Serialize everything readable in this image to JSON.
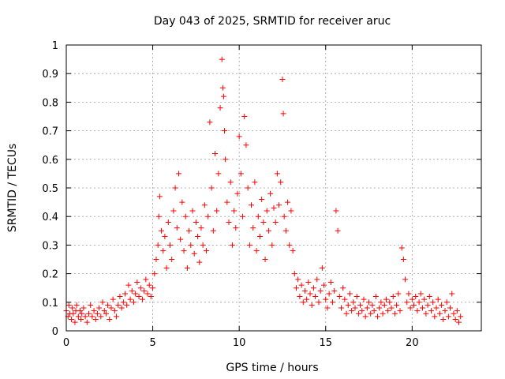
{
  "chart_data": {
    "type": "scatter",
    "title": "Day 043 of 2025, SRMTID for receiver aruc",
    "xlabel": "GPS time / hours",
    "ylabel": "SRMTID / TECUs",
    "xlim": [
      0,
      24
    ],
    "ylim": [
      0,
      1
    ],
    "x_ticks": [
      0,
      5,
      10,
      15,
      20
    ],
    "x_tick_labels": [
      "0",
      "5",
      "10",
      "15",
      "20"
    ],
    "y_ticks": [
      0,
      0.1,
      0.2,
      0.3,
      0.4,
      0.5,
      0.6,
      0.7,
      0.8,
      0.9,
      1
    ],
    "y_tick_labels": [
      "0",
      "0.1",
      "0.2",
      "0.3",
      "0.4",
      "0.5",
      "0.6",
      "0.7",
      "0.8",
      "0.9",
      "1"
    ],
    "grid": true,
    "marker": "+",
    "color": "#ff0000",
    "series": [
      {
        "name": "SRMTID",
        "points": [
          [
            0.0,
            0.07
          ],
          [
            0.1,
            0.05
          ],
          [
            0.15,
            0.09
          ],
          [
            0.2,
            0.06
          ],
          [
            0.3,
            0.04
          ],
          [
            0.35,
            0.08
          ],
          [
            0.4,
            0.06
          ],
          [
            0.5,
            0.03
          ],
          [
            0.55,
            0.07
          ],
          [
            0.6,
            0.09
          ],
          [
            0.7,
            0.05
          ],
          [
            0.8,
            0.07
          ],
          [
            0.85,
            0.04
          ],
          [
            0.9,
            0.06
          ],
          [
            1.0,
            0.08
          ],
          [
            1.1,
            0.05
          ],
          [
            1.2,
            0.03
          ],
          [
            1.3,
            0.06
          ],
          [
            1.4,
            0.09
          ],
          [
            1.5,
            0.05
          ],
          [
            1.6,
            0.07
          ],
          [
            1.7,
            0.04
          ],
          [
            1.8,
            0.06
          ],
          [
            1.9,
            0.08
          ],
          [
            2.0,
            0.05
          ],
          [
            2.1,
            0.1
          ],
          [
            2.2,
            0.07
          ],
          [
            2.3,
            0.06
          ],
          [
            2.4,
            0.09
          ],
          [
            2.5,
            0.04
          ],
          [
            2.6,
            0.08
          ],
          [
            2.7,
            0.11
          ],
          [
            2.8,
            0.07
          ],
          [
            2.9,
            0.05
          ],
          [
            3.0,
            0.09
          ],
          [
            3.1,
            0.12
          ],
          [
            3.2,
            0.08
          ],
          [
            3.3,
            0.1
          ],
          [
            3.4,
            0.13
          ],
          [
            3.5,
            0.09
          ],
          [
            3.6,
            0.16
          ],
          [
            3.7,
            0.11
          ],
          [
            3.8,
            0.14
          ],
          [
            3.9,
            0.1
          ],
          [
            4.0,
            0.13
          ],
          [
            4.1,
            0.17
          ],
          [
            4.2,
            0.12
          ],
          [
            4.3,
            0.15
          ],
          [
            4.4,
            0.11
          ],
          [
            4.5,
            0.14
          ],
          [
            4.6,
            0.18
          ],
          [
            4.7,
            0.13
          ],
          [
            4.8,
            0.16
          ],
          [
            4.9,
            0.12
          ],
          [
            5.0,
            0.15
          ],
          [
            5.1,
            0.2
          ],
          [
            5.2,
            0.25
          ],
          [
            5.3,
            0.3
          ],
          [
            5.35,
            0.4
          ],
          [
            5.4,
            0.47
          ],
          [
            5.5,
            0.35
          ],
          [
            5.6,
            0.28
          ],
          [
            5.7,
            0.33
          ],
          [
            5.8,
            0.22
          ],
          [
            5.9,
            0.38
          ],
          [
            6.0,
            0.3
          ],
          [
            6.1,
            0.25
          ],
          [
            6.2,
            0.42
          ],
          [
            6.3,
            0.5
          ],
          [
            6.4,
            0.36
          ],
          [
            6.5,
            0.55
          ],
          [
            6.6,
            0.32
          ],
          [
            6.7,
            0.45
          ],
          [
            6.8,
            0.28
          ],
          [
            6.9,
            0.4
          ],
          [
            7.0,
            0.22
          ],
          [
            7.1,
            0.35
          ],
          [
            7.2,
            0.3
          ],
          [
            7.3,
            0.42
          ],
          [
            7.4,
            0.27
          ],
          [
            7.5,
            0.38
          ],
          [
            7.6,
            0.33
          ],
          [
            7.7,
            0.24
          ],
          [
            7.8,
            0.36
          ],
          [
            7.9,
            0.3
          ],
          [
            8.0,
            0.44
          ],
          [
            8.1,
            0.28
          ],
          [
            8.2,
            0.4
          ],
          [
            8.3,
            0.73
          ],
          [
            8.4,
            0.5
          ],
          [
            8.5,
            0.35
          ],
          [
            8.6,
            0.62
          ],
          [
            8.7,
            0.42
          ],
          [
            8.8,
            0.55
          ],
          [
            8.9,
            0.78
          ],
          [
            9.0,
            0.95
          ],
          [
            9.05,
            0.85
          ],
          [
            9.1,
            0.82
          ],
          [
            9.15,
            0.7
          ],
          [
            9.2,
            0.6
          ],
          [
            9.3,
            0.45
          ],
          [
            9.4,
            0.38
          ],
          [
            9.5,
            0.52
          ],
          [
            9.6,
            0.3
          ],
          [
            9.7,
            0.42
          ],
          [
            9.8,
            0.36
          ],
          [
            9.9,
            0.48
          ],
          [
            10.0,
            0.68
          ],
          [
            10.1,
            0.55
          ],
          [
            10.2,
            0.4
          ],
          [
            10.3,
            0.75
          ],
          [
            10.4,
            0.65
          ],
          [
            10.5,
            0.5
          ],
          [
            10.6,
            0.3
          ],
          [
            10.7,
            0.44
          ],
          [
            10.8,
            0.36
          ],
          [
            10.9,
            0.52
          ],
          [
            11.0,
            0.28
          ],
          [
            11.1,
            0.4
          ],
          [
            11.2,
            0.33
          ],
          [
            11.3,
            0.46
          ],
          [
            11.4,
            0.38
          ],
          [
            11.5,
            0.25
          ],
          [
            11.6,
            0.42
          ],
          [
            11.7,
            0.35
          ],
          [
            11.8,
            0.48
          ],
          [
            11.9,
            0.3
          ],
          [
            12.0,
            0.43
          ],
          [
            12.1,
            0.38
          ],
          [
            12.2,
            0.55
          ],
          [
            12.3,
            0.44
          ],
          [
            12.4,
            0.52
          ],
          [
            12.5,
            0.88
          ],
          [
            12.55,
            0.76
          ],
          [
            12.6,
            0.4
          ],
          [
            12.7,
            0.35
          ],
          [
            12.8,
            0.45
          ],
          [
            12.9,
            0.3
          ],
          [
            13.0,
            0.42
          ],
          [
            13.1,
            0.28
          ],
          [
            13.2,
            0.2
          ],
          [
            13.3,
            0.15
          ],
          [
            13.4,
            0.18
          ],
          [
            13.5,
            0.12
          ],
          [
            13.6,
            0.16
          ],
          [
            13.7,
            0.1
          ],
          [
            13.8,
            0.14
          ],
          [
            13.9,
            0.11
          ],
          [
            14.0,
            0.17
          ],
          [
            14.1,
            0.13
          ],
          [
            14.2,
            0.09
          ],
          [
            14.3,
            0.15
          ],
          [
            14.4,
            0.12
          ],
          [
            14.5,
            0.18
          ],
          [
            14.6,
            0.1
          ],
          [
            14.7,
            0.14
          ],
          [
            14.8,
            0.22
          ],
          [
            14.9,
            0.16
          ],
          [
            15.0,
            0.11
          ],
          [
            15.1,
            0.08
          ],
          [
            15.2,
            0.13
          ],
          [
            15.3,
            0.17
          ],
          [
            15.4,
            0.1
          ],
          [
            15.5,
            0.14
          ],
          [
            15.6,
            0.42
          ],
          [
            15.7,
            0.35
          ],
          [
            15.8,
            0.12
          ],
          [
            15.9,
            0.08
          ],
          [
            16.0,
            0.15
          ],
          [
            16.1,
            0.11
          ],
          [
            16.2,
            0.06
          ],
          [
            16.3,
            0.09
          ],
          [
            16.4,
            0.13
          ],
          [
            16.5,
            0.07
          ],
          [
            16.6,
            0.1
          ],
          [
            16.7,
            0.08
          ],
          [
            16.8,
            0.12
          ],
          [
            16.9,
            0.06
          ],
          [
            17.0,
            0.09
          ],
          [
            17.1,
            0.07
          ],
          [
            17.2,
            0.11
          ],
          [
            17.3,
            0.05
          ],
          [
            17.4,
            0.08
          ],
          [
            17.5,
            0.1
          ],
          [
            17.6,
            0.06
          ],
          [
            17.7,
            0.09
          ],
          [
            17.8,
            0.07
          ],
          [
            17.9,
            0.12
          ],
          [
            18.0,
            0.05
          ],
          [
            18.1,
            0.08
          ],
          [
            18.2,
            0.1
          ],
          [
            18.3,
            0.06
          ],
          [
            18.4,
            0.09
          ],
          [
            18.5,
            0.11
          ],
          [
            18.6,
            0.07
          ],
          [
            18.7,
            0.1
          ],
          [
            18.8,
            0.08
          ],
          [
            18.9,
            0.12
          ],
          [
            19.0,
            0.06
          ],
          [
            19.1,
            0.09
          ],
          [
            19.2,
            0.13
          ],
          [
            19.3,
            0.07
          ],
          [
            19.4,
            0.29
          ],
          [
            19.5,
            0.25
          ],
          [
            19.6,
            0.18
          ],
          [
            19.7,
            0.1
          ],
          [
            19.8,
            0.13
          ],
          [
            19.9,
            0.08
          ],
          [
            20.0,
            0.11
          ],
          [
            20.1,
            0.09
          ],
          [
            20.2,
            0.12
          ],
          [
            20.3,
            0.07
          ],
          [
            20.4,
            0.1
          ],
          [
            20.5,
            0.13
          ],
          [
            20.6,
            0.08
          ],
          [
            20.7,
            0.11
          ],
          [
            20.8,
            0.06
          ],
          [
            20.9,
            0.09
          ],
          [
            21.0,
            0.12
          ],
          [
            21.1,
            0.07
          ],
          [
            21.2,
            0.1
          ],
          [
            21.3,
            0.05
          ],
          [
            21.4,
            0.08
          ],
          [
            21.5,
            0.11
          ],
          [
            21.6,
            0.06
          ],
          [
            21.7,
            0.09
          ],
          [
            21.8,
            0.04
          ],
          [
            21.9,
            0.07
          ],
          [
            22.0,
            0.1
          ],
          [
            22.1,
            0.05
          ],
          [
            22.2,
            0.08
          ],
          [
            22.3,
            0.13
          ],
          [
            22.4,
            0.06
          ],
          [
            22.5,
            0.04
          ],
          [
            22.6,
            0.07
          ],
          [
            22.7,
            0.03
          ],
          [
            22.8,
            0.05
          ]
        ]
      }
    ]
  }
}
